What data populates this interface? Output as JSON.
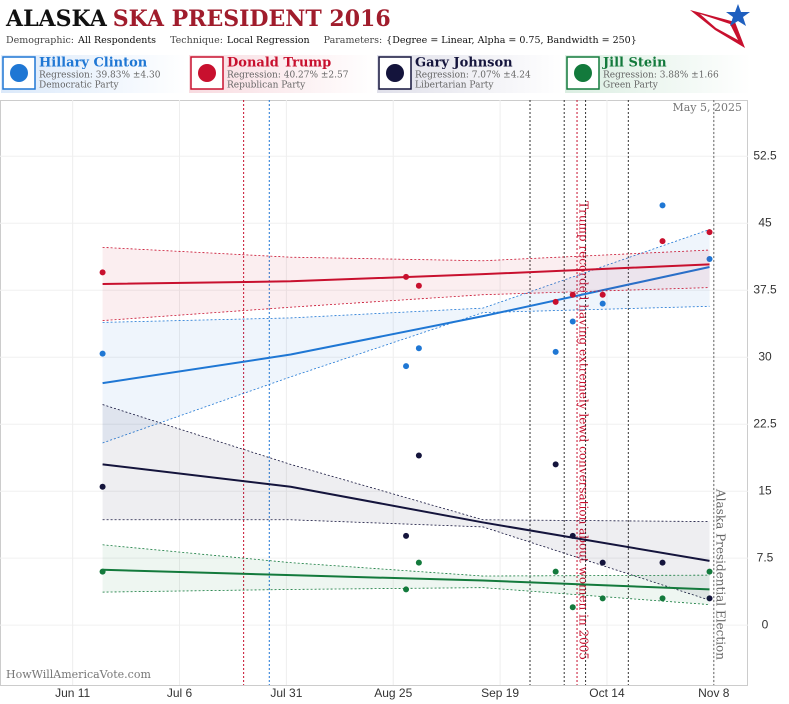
{
  "header": {
    "title_bold": "ALASKA",
    "title_rest": "SKA PRESIDENT 2016",
    "meta": [
      {
        "label": "Demographic:",
        "value": "All Respondents"
      },
      {
        "label": "Technique:",
        "value": "Local Regression"
      },
      {
        "label": "Parameters:",
        "value": "{Degree = Linear, Alpha = 0.75, Bandwidth = 250}"
      }
    ],
    "date": "May 5, 2025",
    "footer": "HowWillAmericaVote.com"
  },
  "chart_data": {
    "type": "scatter",
    "xlim": [
      "05-25",
      "11-16"
    ],
    "xticks": [
      {
        "value": "06-11",
        "label": "Jun 11"
      },
      {
        "value": "07-06",
        "label": "Jul 6"
      },
      {
        "value": "07-31",
        "label": "Jul 31"
      },
      {
        "value": "08-25",
        "label": "Aug 25"
      },
      {
        "value": "09-19",
        "label": "Sep 19"
      },
      {
        "value": "10-14",
        "label": "Oct 14"
      },
      {
        "value": "11-08",
        "label": "Nov 8"
      }
    ],
    "ylim": [
      -6.7,
      58.8
    ],
    "yticks": [
      0,
      7.5,
      15,
      22.5,
      30,
      37.5,
      45,
      52.5
    ],
    "grid": true,
    "x": [
      "06-18",
      "08-28",
      "08-31",
      "10-02",
      "10-06",
      "10-13",
      "10-27",
      "11-07"
    ],
    "fit_x": [
      "06-18",
      "08-01",
      "09-15",
      "11-07"
    ],
    "series": [
      {
        "name": "Hillary Clinton",
        "regression": "Regression: 39.83% ±4.30",
        "party": "Democratic Party",
        "color": "#1f77d4",
        "values": [
          30.4,
          29,
          31,
          30.6,
          34,
          36,
          47,
          41
        ],
        "fit": [
          27.1,
          30.3,
          34.6,
          40.1
        ],
        "upper": [
          33.9,
          34.4,
          35.5,
          44.3
        ],
        "lower": [
          20.4,
          27.8,
          35.0,
          35.7
        ]
      },
      {
        "name": "Donald Trump",
        "regression": "Regression: 40.27% ±2.57",
        "party": "Republican Party",
        "color": "#c8102e",
        "values": [
          39.5,
          39,
          38,
          36.2,
          37,
          37,
          43,
          44
        ],
        "fit": [
          38.2,
          38.5,
          39.3,
          40.4
        ],
        "upper": [
          42.3,
          41.2,
          40.8,
          42.0
        ],
        "lower": [
          34.1,
          35.6,
          37.0,
          37.8
        ]
      },
      {
        "name": "Gary Johnson",
        "regression": "Regression: 7.07% ±4.24",
        "party": "Libertarian Party",
        "color": "#14143c",
        "values": [
          15.5,
          10,
          19,
          18,
          10,
          7,
          7,
          3
        ],
        "fit": [
          18.0,
          15.5,
          11.5,
          7.2
        ],
        "upper": [
          24.7,
          18.0,
          11.8,
          11.6
        ],
        "lower": [
          11.8,
          11.8,
          11.0,
          2.8
        ]
      },
      {
        "name": "Jill Stein",
        "regression": "Regression: 3.88% ±1.66",
        "party": "Green Party",
        "color": "#137a3c",
        "values": [
          6,
          4,
          7,
          6,
          2,
          3,
          3,
          6
        ],
        "fit": [
          6.2,
          5.6,
          5.0,
          4.0
        ],
        "upper": [
          9.0,
          7.0,
          5.5,
          5.6
        ],
        "lower": [
          3.7,
          4.0,
          4.2,
          2.3
        ]
      }
    ],
    "events": [
      {
        "x": "07-21",
        "color": "#c8102e"
      },
      {
        "x": "07-27",
        "color": "#1f77d4"
      },
      {
        "x": "09-26",
        "color": "#333333"
      },
      {
        "x": "10-04",
        "color": "#333333"
      },
      {
        "x": "10-07",
        "color": "#c8102e",
        "label": "Trump recorded having extremely lewd conversation about women in 2005"
      },
      {
        "x": "10-09",
        "color": "#333333"
      },
      {
        "x": "10-19",
        "color": "#333333"
      },
      {
        "x": "11-08",
        "color": "#666666",
        "label": "Alaska Presidential Election"
      }
    ]
  }
}
